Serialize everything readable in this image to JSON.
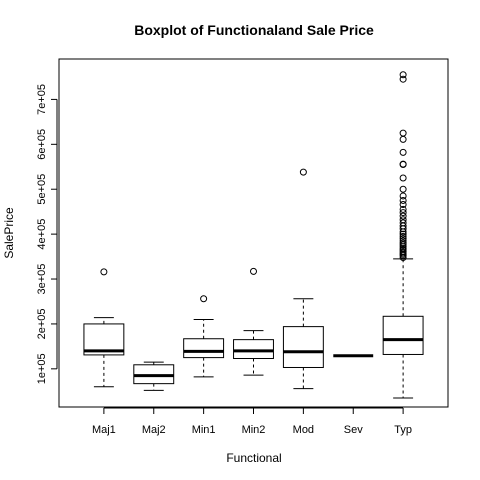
{
  "chart_data": {
    "type": "boxplot",
    "title": "Boxplot of Functionaland Sale Price",
    "xlabel": "Functional",
    "ylabel": "SalePrice",
    "ylim": [
      15000,
      790000
    ],
    "y_ticks": [
      {
        "value": 100000,
        "label": "1e+05"
      },
      {
        "value": 200000,
        "label": "2e+05"
      },
      {
        "value": 300000,
        "label": "3e+05"
      },
      {
        "value": 400000,
        "label": "4e+05"
      },
      {
        "value": 500000,
        "label": "5e+05"
      },
      {
        "value": 600000,
        "label": "6e+05"
      },
      {
        "value": 700000,
        "label": "7e+05"
      }
    ],
    "categories": [
      "Maj1",
      "Maj2",
      "Min1",
      "Min2",
      "Mod",
      "Sev",
      "Typ"
    ],
    "boxes": [
      {
        "category": "Maj1",
        "whisker_low": 60000,
        "q1": 131000,
        "median": 140000,
        "q3": 200000,
        "whisker_high": 214000,
        "outliers": [
          316000
        ]
      },
      {
        "category": "Maj2",
        "whisker_low": 52000,
        "q1": 67000,
        "median": 85000,
        "q3": 109000,
        "whisker_high": 115000,
        "outliers": []
      },
      {
        "category": "Min1",
        "whisker_low": 82000,
        "q1": 125000,
        "median": 139000,
        "q3": 167000,
        "whisker_high": 210000,
        "outliers": [
          256000
        ]
      },
      {
        "category": "Min2",
        "whisker_low": 86000,
        "q1": 123000,
        "median": 140000,
        "q3": 165000,
        "whisker_high": 185000,
        "outliers": [
          317000
        ]
      },
      {
        "category": "Mod",
        "whisker_low": 56000,
        "q1": 103000,
        "median": 138000,
        "q3": 194000,
        "whisker_high": 256000,
        "outliers": [
          538000
        ]
      },
      {
        "category": "Sev",
        "whisker_low": 129000,
        "q1": 129000,
        "median": 129000,
        "q3": 129000,
        "whisker_high": 129000,
        "outliers": []
      },
      {
        "category": "Typ",
        "whisker_low": 35000,
        "q1": 132000,
        "median": 165000,
        "q3": 217000,
        "whisker_high": 345000,
        "outliers": [
          348000,
          352000,
          355000,
          358000,
          361000,
          365000,
          368000,
          372000,
          376000,
          380000,
          385000,
          390000,
          395000,
          400000,
          405000,
          412000,
          418000,
          425000,
          432000,
          440000,
          448000,
          455000,
          466000,
          475000,
          485000,
          500000,
          525000,
          555000,
          556000,
          582000,
          611000,
          625000,
          745000,
          755000
        ]
      }
    ]
  }
}
